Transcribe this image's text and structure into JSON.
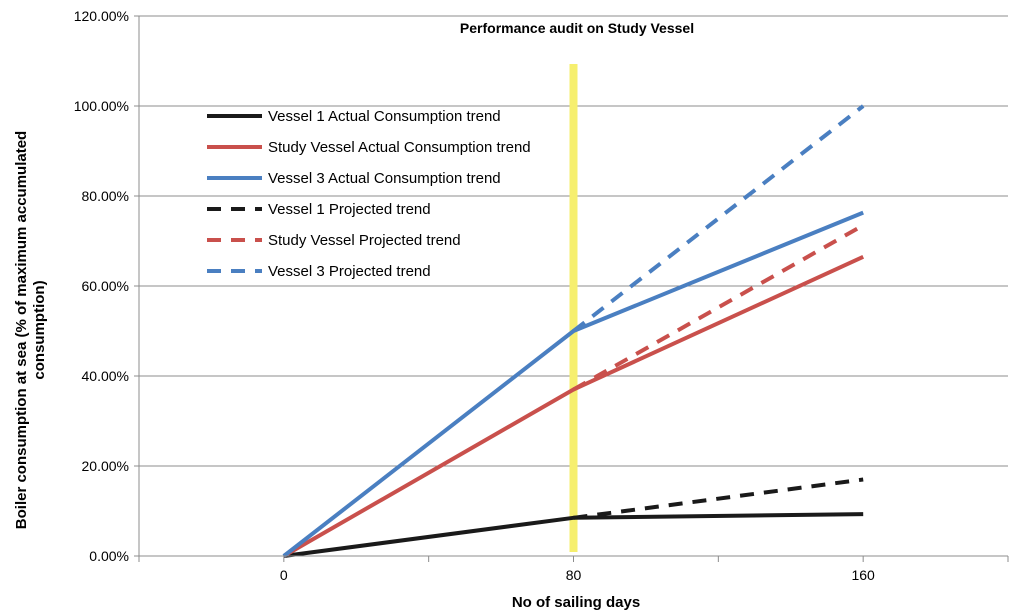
{
  "chart_data": {
    "type": "line",
    "title": "Performance audit on Study Vessel",
    "xlabel": "No of sailing days",
    "ylabel_lines": [
      "Boiler consumption at sea (% of maximum accumulated",
      "consumption)"
    ],
    "x": [
      0,
      80,
      160
    ],
    "x_tick_labels": [
      "0",
      "80",
      "160"
    ],
    "xlim": [
      -40,
      200
    ],
    "ylim": [
      0,
      1.2
    ],
    "y_tick_values": [
      0,
      0.2,
      0.4,
      0.6,
      0.8,
      1.0,
      1.2
    ],
    "y_tick_labels": [
      "0.00%",
      "20.00%",
      "40.00%",
      "60.00%",
      "80.00%",
      "100.00%",
      "120.00%"
    ],
    "grid": "horizontal",
    "legend_position": "top-left",
    "highlight_x": 80,
    "highlight_color": "#f6ef6e",
    "series": [
      {
        "name": "Vessel 1 Actual Consumption trend",
        "color": "#1a1a1a",
        "dashed": false,
        "x": [
          0,
          80,
          160
        ],
        "values": [
          0,
          0.085,
          0.093
        ]
      },
      {
        "name": "Study Vessel Actual Consumption trend",
        "color": "#c9504c",
        "dashed": false,
        "x": [
          0,
          80,
          160
        ],
        "values": [
          0,
          0.37,
          0.665
        ]
      },
      {
        "name": "Vessel 3 Actual Consumption trend",
        "color": "#4a7fc1",
        "dashed": false,
        "x": [
          0,
          80,
          160
        ],
        "values": [
          0,
          0.5,
          0.763
        ]
      },
      {
        "name": "Vessel 1 Projected trend",
        "color": "#1a1a1a",
        "dashed": true,
        "x": [
          80,
          160
        ],
        "values": [
          0.085,
          0.17
        ]
      },
      {
        "name": "Study Vessel Projected trend",
        "color": "#c9504c",
        "dashed": true,
        "x": [
          80,
          160
        ],
        "values": [
          0.37,
          0.735
        ]
      },
      {
        "name": "Vessel 3 Projected trend",
        "color": "#4a7fc1",
        "dashed": true,
        "x": [
          80,
          160
        ],
        "values": [
          0.5,
          1.0
        ]
      }
    ]
  }
}
